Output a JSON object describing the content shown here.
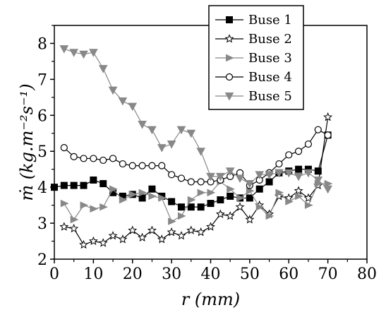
{
  "chart_data": {
    "type": "line",
    "xlabel": "r (mm)",
    "ylabel": "ṁ (kg.m⁻²s⁻¹)",
    "xlim": [
      0,
      80
    ],
    "ylim": [
      2,
      8.5
    ],
    "xticks": [
      "0",
      "10",
      "20",
      "30",
      "40",
      "50",
      "60",
      "70",
      "80"
    ],
    "yticks": [
      "2",
      "3",
      "4",
      "5",
      "6",
      "7",
      "8"
    ],
    "grid": false,
    "legend_position": "top-right",
    "series": [
      {
        "name": "Buse 1",
        "marker": "square-filled",
        "color": "#000000",
        "x": [
          0,
          2.5,
          5,
          7.5,
          10,
          12.5,
          15,
          17.5,
          20,
          22.5,
          25,
          27.5,
          30,
          32.5,
          35,
          37.5,
          40,
          42.5,
          45,
          47.5,
          50,
          52.5,
          55,
          57.5,
          60,
          62.5,
          65,
          67.5,
          70
        ],
        "y": [
          4.0,
          4.05,
          4.05,
          4.05,
          4.2,
          4.1,
          3.85,
          3.75,
          3.8,
          3.7,
          3.95,
          3.75,
          3.6,
          3.45,
          3.45,
          3.45,
          3.55,
          3.65,
          3.75,
          3.7,
          3.7,
          3.95,
          4.15,
          4.4,
          4.45,
          4.5,
          4.5,
          4.45,
          5.45
        ]
      },
      {
        "name": "Buse 2",
        "marker": "star-open",
        "color": "#000000",
        "x": [
          2.5,
          5,
          7.5,
          10,
          12.5,
          15,
          17.5,
          20,
          22.5,
          25,
          27.5,
          30,
          32.5,
          35,
          37.5,
          40,
          42.5,
          45,
          47.5,
          50,
          52.5,
          55,
          57.5,
          60,
          62.5,
          65,
          67.5,
          70
        ],
        "y": [
          2.9,
          2.85,
          2.4,
          2.5,
          2.45,
          2.65,
          2.55,
          2.8,
          2.6,
          2.8,
          2.55,
          2.75,
          2.65,
          2.8,
          2.75,
          2.9,
          3.25,
          3.2,
          3.45,
          3.1,
          3.5,
          3.25,
          3.75,
          3.7,
          3.9,
          3.7,
          4.05,
          5.95
        ]
      },
      {
        "name": "Buse 3",
        "marker": "triangle-right-filled",
        "color": "#888888",
        "x": [
          2.5,
          5,
          7.5,
          10,
          12.5,
          15,
          17.5,
          20,
          22.5,
          25,
          27.5,
          30,
          32.5,
          35,
          37.5,
          40,
          42.5,
          45,
          47.5,
          50,
          52.5,
          55,
          57.5,
          60,
          62.5,
          65,
          67.5,
          70
        ],
        "y": [
          3.55,
          3.1,
          3.5,
          3.4,
          3.45,
          3.95,
          3.65,
          3.8,
          3.85,
          3.75,
          3.7,
          3.05,
          3.2,
          3.65,
          3.85,
          3.85,
          4.15,
          3.95,
          3.7,
          3.9,
          3.45,
          3.2,
          3.85,
          3.6,
          3.75,
          3.5,
          4.1,
          4.1
        ]
      },
      {
        "name": "Buse 4",
        "marker": "circle-open",
        "color": "#000000",
        "x": [
          2.5,
          5,
          7.5,
          10,
          12.5,
          15,
          17.5,
          20,
          22.5,
          25,
          27.5,
          30,
          32.5,
          35,
          37.5,
          40,
          42.5,
          45,
          47.5,
          50,
          52.5,
          55,
          57.5,
          60,
          62.5,
          65,
          67.5,
          70
        ],
        "y": [
          5.1,
          4.85,
          4.8,
          4.8,
          4.75,
          4.8,
          4.65,
          4.6,
          4.6,
          4.6,
          4.6,
          4.35,
          4.25,
          4.15,
          4.15,
          4.15,
          4.2,
          4.3,
          4.4,
          4.05,
          4.2,
          4.4,
          4.65,
          4.9,
          5.0,
          5.2,
          5.6,
          5.45
        ]
      },
      {
        "name": "Buse 5",
        "marker": "triangle-down-filled",
        "color": "#888888",
        "x": [
          2.5,
          5,
          7.5,
          10,
          12.5,
          15,
          17.5,
          20,
          22.5,
          25,
          27.5,
          30,
          32.5,
          35,
          37.5,
          40,
          42.5,
          45,
          47.5,
          50,
          52.5,
          55,
          57.5,
          60,
          62.5,
          65,
          67.5,
          70
        ],
        "y": [
          7.85,
          7.75,
          7.7,
          7.75,
          7.3,
          6.7,
          6.4,
          6.25,
          5.75,
          5.6,
          5.1,
          5.2,
          5.6,
          5.5,
          5.0,
          4.3,
          4.3,
          4.45,
          4.25,
          4.1,
          4.35,
          4.35,
          4.4,
          4.4,
          4.3,
          4.4,
          4.2,
          3.95
        ]
      }
    ]
  }
}
